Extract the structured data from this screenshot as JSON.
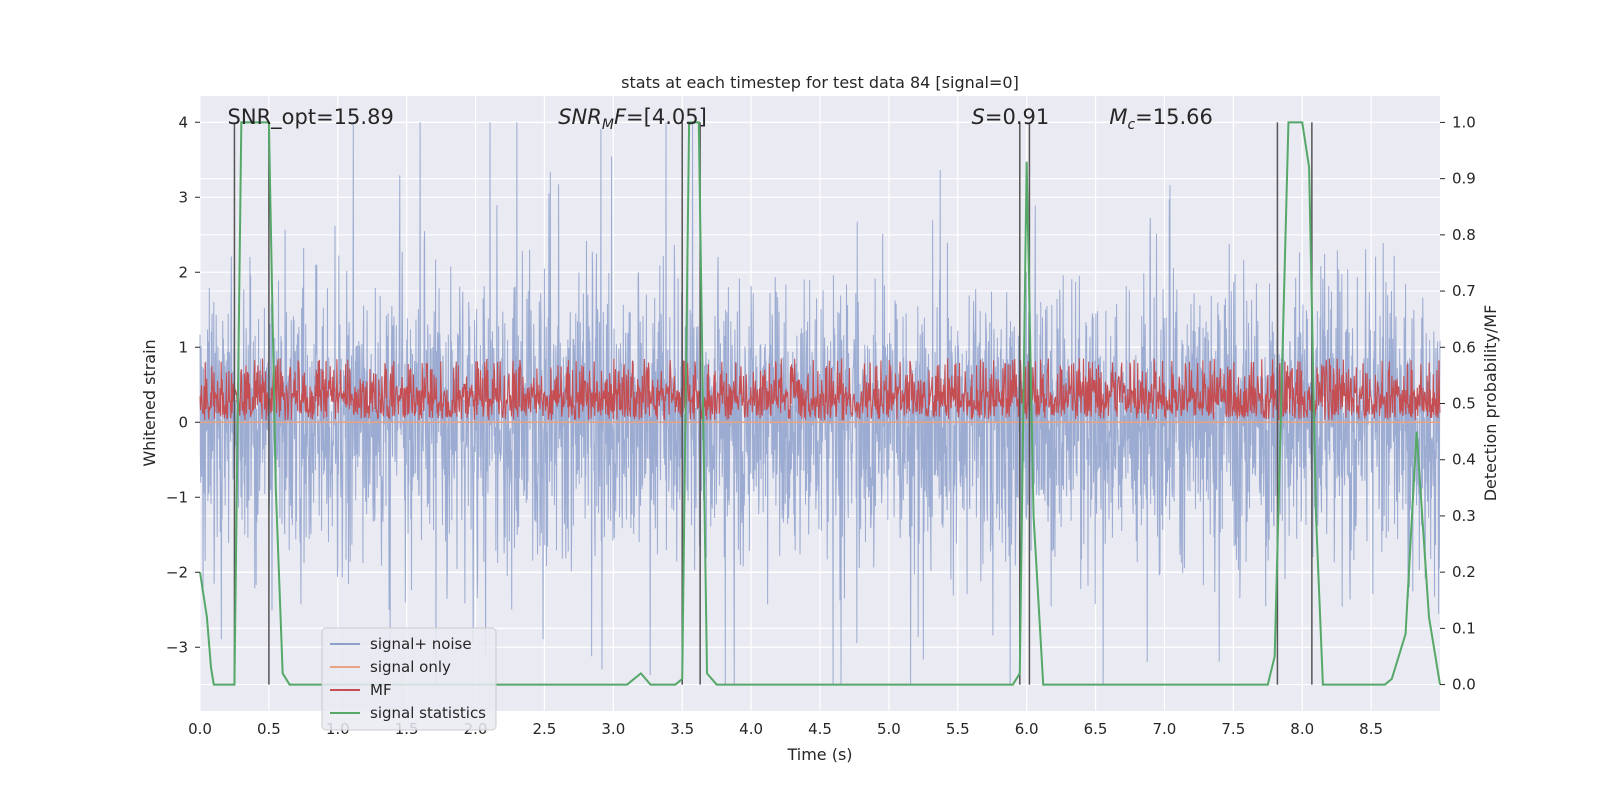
{
  "chart_data": {
    "type": "line",
    "title": "stats at each timestep for test data 84 [signal=0]",
    "xlabel": "Time (s)",
    "ylabel": "Whitened strain",
    "y2label": "Detection probability/MF",
    "xlim": [
      0.0,
      9.0
    ],
    "ylim": [
      -3.85,
      4.35
    ],
    "y2lim": [
      -0.047,
      1.047
    ],
    "x_ticks": [
      "0.0",
      "0.5",
      "1.0",
      "1.5",
      "2.0",
      "2.5",
      "3.0",
      "3.5",
      "4.0",
      "4.5",
      "5.0",
      "5.5",
      "6.0",
      "6.5",
      "7.0",
      "7.5",
      "8.0",
      "8.5"
    ],
    "y_ticks": [
      "4",
      "3",
      "2",
      "1",
      "0",
      "−1",
      "−2",
      "−3"
    ],
    "y2_ticks": [
      "1.0",
      "0.9",
      "0.8",
      "0.7",
      "0.6",
      "0.5",
      "0.4",
      "0.3",
      "0.2",
      "0.1",
      "0.0"
    ],
    "grid": true,
    "annotations": [
      {
        "text": "SNR_opt=15.89",
        "x": 0.2
      },
      {
        "text": "SNRMF=[4.05]",
        "x": 2.6
      },
      {
        "text": "S=0.91",
        "x": 5.6
      },
      {
        "text": "Mc=15.66",
        "x": 6.6
      }
    ],
    "legend": {
      "position": "lower-left",
      "entries": [
        {
          "label": "signal+ noise",
          "color": "#8da0cb"
        },
        {
          "label": "signal only",
          "color": "#e8a382"
        },
        {
          "label": "MF",
          "color": "#c44e52"
        },
        {
          "label": "signal statistics",
          "color": "#55a868"
        }
      ]
    },
    "series": [
      {
        "name": "signal+ noise",
        "axis": "left",
        "color": "#8da0cb",
        "description": "whitened strain noise, |values| up to about 4",
        "y_range": [
          -3.5,
          4.0
        ]
      },
      {
        "name": "signal only",
        "axis": "left",
        "color": "#e8a382",
        "x": [
          0.0,
          9.0
        ],
        "y": [
          0.0,
          0.0
        ]
      },
      {
        "name": "MF",
        "axis": "right",
        "color": "#c44e52",
        "y_range": [
          0.47,
          0.6
        ]
      },
      {
        "name": "signal statistics",
        "axis": "right",
        "color": "#55a868",
        "x": [
          0.0,
          0.05,
          0.08,
          0.1,
          0.25,
          0.3,
          0.5,
          0.55,
          0.6,
          0.65,
          3.1,
          3.2,
          3.27,
          3.45,
          3.5,
          3.55,
          3.62,
          3.68,
          3.75,
          5.9,
          5.95,
          6.0,
          6.05,
          6.12,
          7.75,
          7.8,
          7.9,
          8.0,
          8.05,
          8.1,
          8.15,
          8.2,
          8.6,
          8.65,
          8.75,
          8.83,
          8.92,
          9.0
        ],
        "y": [
          0.2,
          0.12,
          0.03,
          0.0,
          0.0,
          1.0,
          1.0,
          0.35,
          0.02,
          0.0,
          0.0,
          0.02,
          0.0,
          0.0,
          0.01,
          1.0,
          1.0,
          0.02,
          0.0,
          0.0,
          0.02,
          0.93,
          0.3,
          0.0,
          0.0,
          0.05,
          1.0,
          1.0,
          0.92,
          0.3,
          0.0,
          0.0,
          0.0,
          0.01,
          0.09,
          0.45,
          0.12,
          0.0
        ]
      },
      {
        "name": "markers",
        "axis": "left",
        "color": "#555555",
        "x": [
          0.25,
          0.5,
          3.5,
          3.63,
          5.95,
          6.02,
          7.82,
          8.07
        ]
      }
    ]
  }
}
